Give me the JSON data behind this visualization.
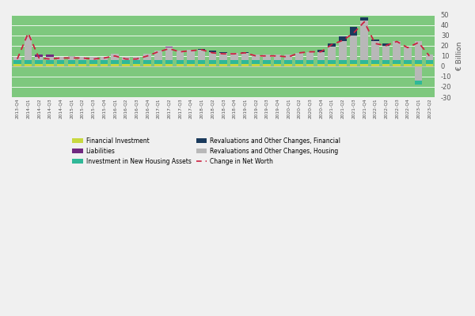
{
  "quarters": [
    "2013-Q4",
    "2014-Q1",
    "2014-Q2",
    "2014-Q3",
    "2014-Q4",
    "2015-Q1",
    "2015-Q2",
    "2015-Q3",
    "2015-Q4",
    "2016-Q1",
    "2016-Q2",
    "2016-Q3",
    "2016-Q4",
    "2017-Q1",
    "2017-Q2",
    "2017-Q3",
    "2017-Q4",
    "2018-Q1",
    "2018-Q2",
    "2018-Q3",
    "2018-Q4",
    "2019-Q1",
    "2019-Q2",
    "2019-Q3",
    "2019-Q4",
    "2020-Q1",
    "2020-Q2",
    "2020-Q3",
    "2020-Q4",
    "2021-Q1",
    "2021-Q2",
    "2021-Q3",
    "2021-Q4",
    "2022-Q1",
    "2022-Q2",
    "2022-Q3",
    "2022-Q4",
    "2023-Q1",
    "2023-Q2"
  ],
  "financial_investment": [
    2,
    2,
    2,
    2,
    2,
    2,
    2,
    2,
    2,
    2,
    2,
    2,
    2,
    2,
    2,
    2,
    2,
    2,
    2,
    2,
    2,
    2,
    2,
    2,
    2,
    2,
    2,
    2,
    2,
    2,
    2,
    2,
    2,
    2,
    2,
    2,
    2,
    2,
    2
  ],
  "investment_housing": [
    4,
    4,
    4,
    4,
    4,
    4,
    4,
    4,
    4,
    4,
    4,
    4,
    4,
    4,
    4,
    4,
    4,
    4,
    4,
    4,
    4,
    4,
    4,
    4,
    4,
    4,
    4,
    4,
    4,
    4,
    4,
    4,
    4,
    4,
    4,
    4,
    4,
    4,
    4
  ],
  "revaluations_housing": [
    3,
    22,
    3,
    3,
    3,
    4,
    3,
    3,
    3,
    6,
    3,
    3,
    6,
    9,
    12,
    9,
    10,
    10,
    8,
    7,
    7,
    7,
    5,
    5,
    5,
    5,
    7,
    8,
    8,
    13,
    18,
    24,
    38,
    18,
    14,
    18,
    12,
    18,
    5
  ],
  "liabilities": [
    0,
    0,
    2,
    2,
    0,
    0,
    0,
    0,
    0,
    0,
    0,
    0,
    0,
    0,
    1,
    0,
    0,
    0,
    0,
    0,
    0,
    0,
    0,
    0,
    0,
    0,
    0,
    0,
    0,
    0,
    0,
    0,
    0,
    0,
    0,
    0,
    0,
    0,
    0
  ],
  "revaluations_financial": [
    0,
    0,
    0,
    0,
    0,
    0,
    0,
    0,
    0,
    0,
    0,
    0,
    0,
    0,
    0,
    0,
    0,
    1,
    1,
    1,
    0,
    1,
    0,
    0,
    0,
    0,
    0,
    0,
    2,
    3,
    5,
    8,
    3,
    2,
    2,
    0,
    0,
    0,
    0
  ],
  "change_net_worth": [
    7,
    32,
    8,
    7,
    8,
    8,
    8,
    7,
    8,
    10,
    7,
    7,
    10,
    14,
    17,
    14,
    15,
    16,
    13,
    12,
    12,
    13,
    10,
    10,
    10,
    9,
    13,
    14,
    14,
    21,
    25,
    32,
    43,
    22,
    20,
    24,
    18,
    23,
    10
  ],
  "neg_revaluations_housing": [
    0,
    0,
    0,
    0,
    0,
    0,
    0,
    0,
    0,
    0,
    0,
    0,
    0,
    0,
    0,
    0,
    0,
    0,
    0,
    0,
    0,
    0,
    0,
    0,
    0,
    0,
    0,
    0,
    0,
    0,
    0,
    0,
    0,
    0,
    0,
    0,
    0,
    -14,
    0
  ],
  "neg_investment_housing": [
    0,
    0,
    0,
    0,
    0,
    0,
    0,
    0,
    0,
    0,
    0,
    0,
    0,
    0,
    0,
    0,
    0,
    0,
    0,
    0,
    0,
    0,
    0,
    0,
    0,
    0,
    0,
    0,
    0,
    0,
    0,
    0,
    0,
    0,
    0,
    0,
    0,
    -4,
    0
  ],
  "color_financial_investment": "#c8d840",
  "color_investment_housing": "#30b898",
  "color_revaluations_housing": "#b8b8b8",
  "color_liabilities": "#702880",
  "color_revaluations_financial": "#1a3a5c",
  "color_change_net_worth": "#cc2040",
  "color_bg_chart": "#7ec87e",
  "color_bg_outer": "#f0f0f0",
  "ylabel": "€ Billion",
  "ylim_min": -30,
  "ylim_max": 50,
  "yticks": [
    -30,
    -20,
    -10,
    0,
    10,
    20,
    30,
    40,
    50
  ],
  "legend_labels": [
    "Financial Investment",
    "Liabilities",
    "Investment in New Housing Assets",
    "Revaluations and Other Changes, Financial",
    "Revaluations and Other Changes, Housing",
    "Change in Net Worth"
  ]
}
